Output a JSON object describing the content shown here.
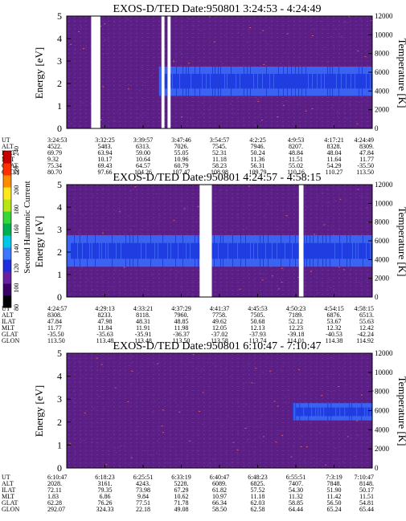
{
  "colors": {
    "background": "#5b1f86",
    "speckle": "#6e2f9c",
    "band_outer": "#3b63f2",
    "band_core": "#1f3de0",
    "speckle_hot": "#e05a5a"
  },
  "colorbar": {
    "label": "Second Harmonic Current",
    "ticks": [
      "80",
      "100",
      "120",
      "140",
      "160",
      "180",
      "200",
      "220",
      "240"
    ],
    "colors": [
      "#000000",
      "#3a0066",
      "#6a1fa0",
      "#1c2ee0",
      "#3a78ff",
      "#00c8e6",
      "#00b050",
      "#37d63a",
      "#b8e614",
      "#ffe81a",
      "#ff8c00",
      "#ff3000",
      "#c80000"
    ]
  },
  "row_labels": [
    "UT",
    "ALT",
    "ILAT",
    "MLT",
    "GLAT",
    "GLON"
  ],
  "chart_data": [
    {
      "type": "heatmap",
      "title": "EXOS-D/TED   Date:950801   3:24:53 - 4:24:49",
      "ylabel": "Energy [eV]",
      "ylabel_right": "Temperature [K]",
      "yticks": [
        "0",
        "1",
        "2",
        "3",
        "4",
        "5"
      ],
      "yticks_right": [
        "0",
        "2000",
        "4000",
        "6000",
        "8000",
        "10000",
        "12000"
      ],
      "ylim": [
        0,
        5
      ],
      "ylim_right": [
        0,
        12000
      ],
      "gaps": [
        [
          0.08,
          0.11
        ],
        [
          0.31,
          0.32
        ],
        [
          0.33,
          0.34
        ]
      ],
      "band": {
        "start": 0.3,
        "center": 2.1,
        "width": 1.3
      },
      "orbit_table": [
        [
          "3:24:53",
          "4522.",
          "69.79",
          "9.32",
          "75.34",
          "80.70"
        ],
        [
          "3:32:25",
          "5483.",
          "63.94",
          "10.17",
          "69.43",
          "97.66"
        ],
        [
          "3:39:57",
          "6313.",
          "59.00",
          "10.64",
          "64.57",
          "104.26"
        ],
        [
          "3:47:46",
          "7026.",
          "55.05",
          "10.96",
          "60.79",
          "107.47"
        ],
        [
          "3:54:57",
          "7545.",
          "52.31",
          "11.18",
          "58.23",
          "108.98"
        ],
        [
          "4:2:25",
          "7946.",
          "50.24",
          "11.36",
          "56.31",
          "109.79"
        ],
        [
          "4:9:53",
          "8207.",
          "48.84",
          "11.51",
          "55.02",
          "110.16"
        ],
        [
          "4:17:21",
          "8328.",
          "48.04",
          "11.64",
          "54.29",
          "110.27"
        ],
        [
          "4:24:49",
          "8309.",
          "47.84",
          "11.77",
          "-35.50",
          "113.50"
        ]
      ]
    },
    {
      "type": "heatmap",
      "title": "EXOS-D/TED   Date:950801   4:24:57 - 4:58:15",
      "ylabel": "Energy [eV]",
      "ylabel_right": "Temperature [K]",
      "yticks": [
        "0",
        "1",
        "2",
        "3",
        "4",
        "5"
      ],
      "yticks_right": [
        "0",
        "2000",
        "4000",
        "6000",
        "8000",
        "10000",
        "12000"
      ],
      "ylim": [
        0,
        5
      ],
      "ylim_right": [
        0,
        12000
      ],
      "gaps": [
        [
          0.435,
          0.475
        ],
        [
          0.76,
          0.775
        ]
      ],
      "band": {
        "start": 0.0,
        "center": 2.05,
        "width": 1.4
      },
      "orbit_table": [
        [
          "4:24:57",
          "8308.",
          "47.84",
          "11.77",
          "-35.50",
          "113.50"
        ],
        [
          "4:29:13",
          "8233.",
          "47.98",
          "11.84",
          "-35.63",
          "113.48"
        ],
        [
          "4:33:21",
          "8118.",
          "48.31",
          "11.91",
          "-35.91",
          "113.48"
        ],
        [
          "4:37:29",
          "7960.",
          "48.85",
          "11.98",
          "-36.37",
          "113.50"
        ],
        [
          "4:41:37",
          "7758.",
          "49.62",
          "12.05",
          "-37.02",
          "113.58"
        ],
        [
          "4:45:53",
          "7505.",
          "50.68",
          "12.13",
          "-37.93",
          "113.74"
        ],
        [
          "4:50:23",
          "7189.",
          "52.12",
          "12.23",
          "-39.18",
          "114.01"
        ],
        [
          "4:54:15",
          "6876.",
          "53.67",
          "12.32",
          "-40.53",
          "114.38"
        ],
        [
          "4:58:15",
          "6513.",
          "55.63",
          "12.42",
          "-42.24",
          "114.92"
        ]
      ]
    },
    {
      "type": "heatmap",
      "title": "EXOS-D/TED   Date:950801   6:10:47 - 7:10:47",
      "ylabel": "Energy [eV]",
      "ylabel_right": "Temperature [K]",
      "yticks": [
        "0",
        "1",
        "2",
        "3",
        "4",
        "5"
      ],
      "yticks_right": [
        "0",
        "2000",
        "4000",
        "6000",
        "8000",
        "10000",
        "12000"
      ],
      "ylim": [
        0,
        5
      ],
      "ylim_right": [
        0,
        12000
      ],
      "gaps": [],
      "band": {
        "start": 0.74,
        "center": 2.45,
        "width": 0.75
      },
      "orbit_table": [
        [
          "6:10:47",
          "2028.",
          "72.11",
          "1.83",
          "62.28",
          "292.07"
        ],
        [
          "6:18:23",
          "3161.",
          "79.35",
          "6.86",
          "76.26",
          "324.33"
        ],
        [
          "6:25:51",
          "4243.",
          "73.98",
          "9.84",
          "77.51",
          "22.18"
        ],
        [
          "6:33:19",
          "5228.",
          "67.29",
          "10.62",
          "71.78",
          "49.08"
        ],
        [
          "6:40:47",
          "6089.",
          "61.82",
          "10.97",
          "66.34",
          "58.50"
        ],
        [
          "6:48:23",
          "6825.",
          "57.52",
          "11.18",
          "62.03",
          "62.58"
        ],
        [
          "6:55:51",
          "7407.",
          "54.30",
          "11.32",
          "58.85",
          "64.44"
        ],
        [
          "7:3:19",
          "7848.",
          "51.90",
          "11.42",
          "56.50",
          "65.24"
        ],
        [
          "7:10:47",
          "8148.",
          "50.17",
          "11.51",
          "54.81",
          "65.44"
        ]
      ]
    }
  ]
}
